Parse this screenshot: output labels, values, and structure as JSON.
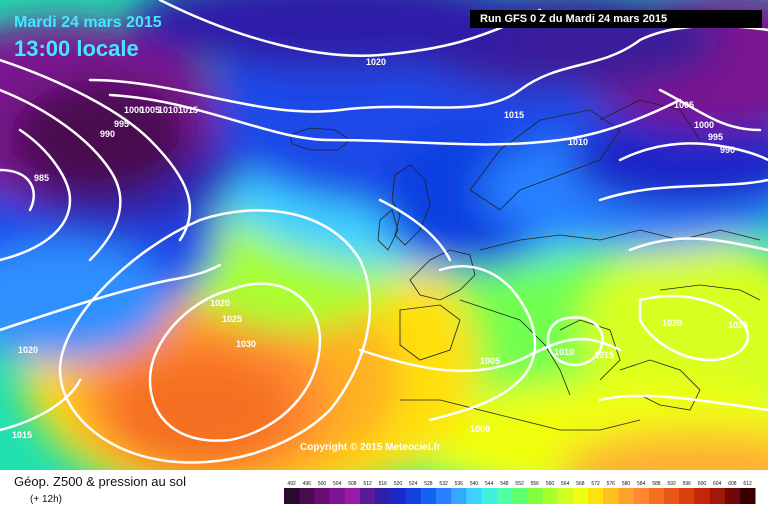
{
  "header": {
    "date": "Mardi 24 mars 2015",
    "time": "13:00 locale",
    "run": "Run GFS 0 Z du Mardi 24 mars 2015"
  },
  "footer": {
    "title": "Géop. Z500 & pression au sol",
    "subtitle": "(+ 12h)"
  },
  "copyright": "Copyright © 2015 Meteociel.fr",
  "isobar_labels": [
    "1020",
    "1015",
    "1000",
    "1005",
    "1010",
    "1015",
    "995",
    "990",
    "985",
    "1010",
    "1015",
    "1005",
    "1000",
    "995",
    "990",
    "1020",
    "1025",
    "1030",
    "1020",
    "1015",
    "1005",
    "1000",
    "1010",
    "1015",
    "1020",
    "1025"
  ],
  "colorbar": {
    "ticks": [
      "492",
      "496",
      "500",
      "504",
      "508",
      "512",
      "516",
      "520",
      "524",
      "528",
      "532",
      "536",
      "540",
      "544",
      "548",
      "552",
      "556",
      "560",
      "564",
      "568",
      "572",
      "576",
      "580",
      "584",
      "588",
      "592",
      "596",
      "600",
      "604",
      "608",
      "612"
    ],
    "colors": [
      "#2a0a2c",
      "#4a0c50",
      "#6a0f72",
      "#801490",
      "#9a1aa8",
      "#5a1a9a",
      "#2e1ea8",
      "#1a28c8",
      "#1040e0",
      "#1860f0",
      "#2880ff",
      "#35a8ff",
      "#40d0ff",
      "#40f0e0",
      "#50ffa8",
      "#60ff70",
      "#80ff40",
      "#a8ff30",
      "#d0ff20",
      "#f0ff10",
      "#ffe010",
      "#ffc020",
      "#ffa030",
      "#ff8830",
      "#f57020",
      "#e85818",
      "#d84010",
      "#c02808",
      "#a01808",
      "#700808",
      "#3a0000"
    ]
  }
}
